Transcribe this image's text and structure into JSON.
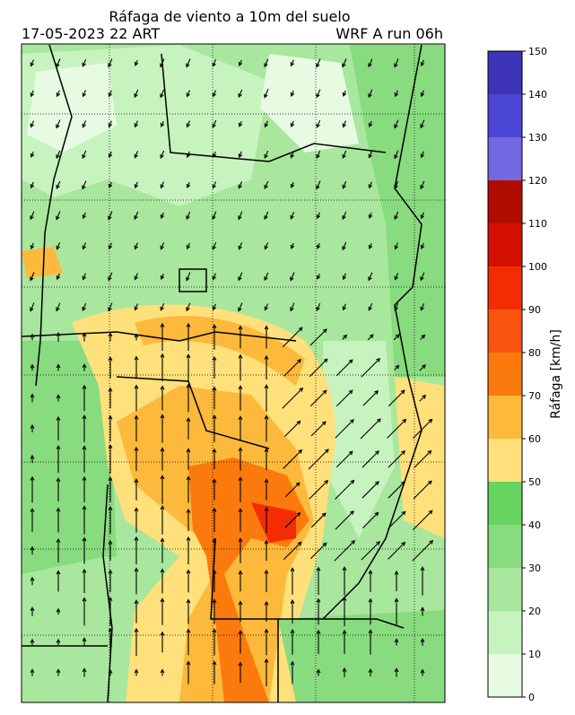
{
  "title": "Ráfaga de viento a 10m del suelo",
  "subtitle_left": "17-05-2023 22 ART",
  "subtitle_right": "WRF A run 06h",
  "colorbar": {
    "label": "Ráfaga [km/h]",
    "ticks": [
      0,
      10,
      20,
      30,
      40,
      50,
      60,
      70,
      80,
      90,
      100,
      110,
      120,
      130,
      140,
      150
    ],
    "colors": [
      "#e6fbe1",
      "#c7f3bf",
      "#a8e79d",
      "#88db7e",
      "#66d45e",
      "#ffe07a",
      "#fdb93c",
      "#fb7a0e",
      "#f85410",
      "#f42c04",
      "#d41002",
      "#b00d00",
      "#7468e2",
      "#4b45d3",
      "#3c33b6"
    ]
  }
}
